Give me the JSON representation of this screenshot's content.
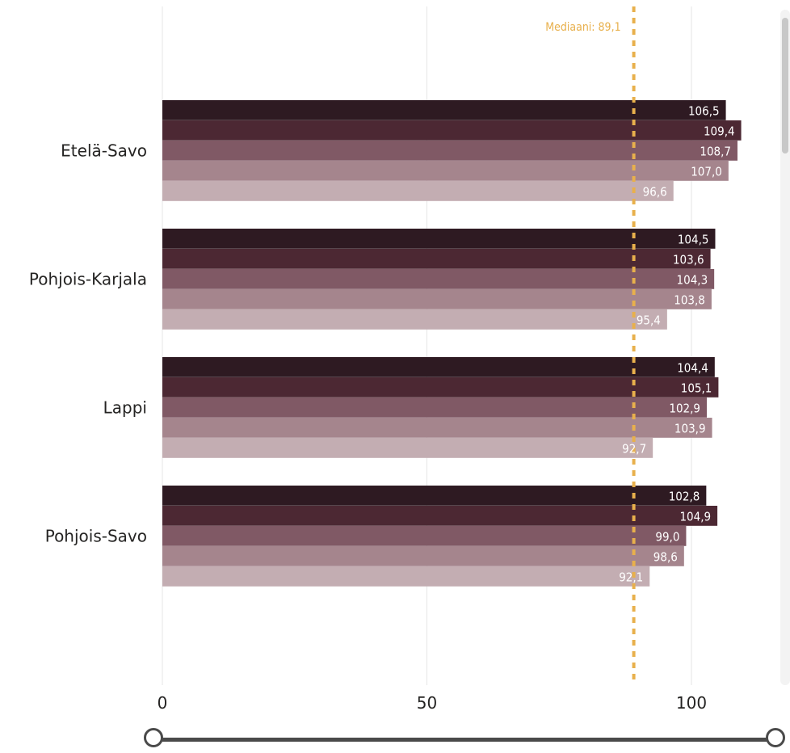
{
  "chart_data": {
    "type": "bar",
    "orientation": "horizontal",
    "categories": [
      "Etelä-Savo",
      "Pohjois-Karjala",
      "Lappi",
      "Pohjois-Savo"
    ],
    "series": [
      {
        "color": "#2e1a22",
        "values": [
          106.5,
          104.5,
          104.4,
          102.8
        ],
        "labels": [
          "106,5",
          "104,5",
          "104,4",
          "102,8"
        ]
      },
      {
        "color": "#4c2833",
        "values": [
          109.4,
          103.6,
          105.1,
          104.9
        ],
        "labels": [
          "109,4",
          "103,6",
          "105,1",
          "104,9"
        ]
      },
      {
        "color": "#805965",
        "values": [
          108.7,
          104.3,
          102.9,
          99.0
        ],
        "labels": [
          "108,7",
          "104,3",
          "102,9",
          "99,0"
        ]
      },
      {
        "color": "#a5858d",
        "values": [
          107.0,
          103.8,
          103.9,
          98.6
        ],
        "labels": [
          "107,0",
          "103,8",
          "103,9",
          "98,6"
        ]
      },
      {
        "color": "#c3adb2",
        "values": [
          96.6,
          95.4,
          92.7,
          92.1
        ],
        "labels": [
          "96,6",
          "95,4",
          "92,7",
          "92,1"
        ]
      }
    ],
    "x_ticks": [
      0,
      50,
      100
    ],
    "xlim": [
      0,
      110
    ],
    "grid": true,
    "reference_line": {
      "value": 89.1,
      "label": "Mediaani: 89,1",
      "color": "#e8b04c",
      "style": "dotted"
    },
    "xlabel": "",
    "ylabel": "",
    "title": ""
  },
  "controls": {
    "range_slider": {
      "min": 0,
      "max": 100,
      "from": 0,
      "to": 100
    }
  }
}
